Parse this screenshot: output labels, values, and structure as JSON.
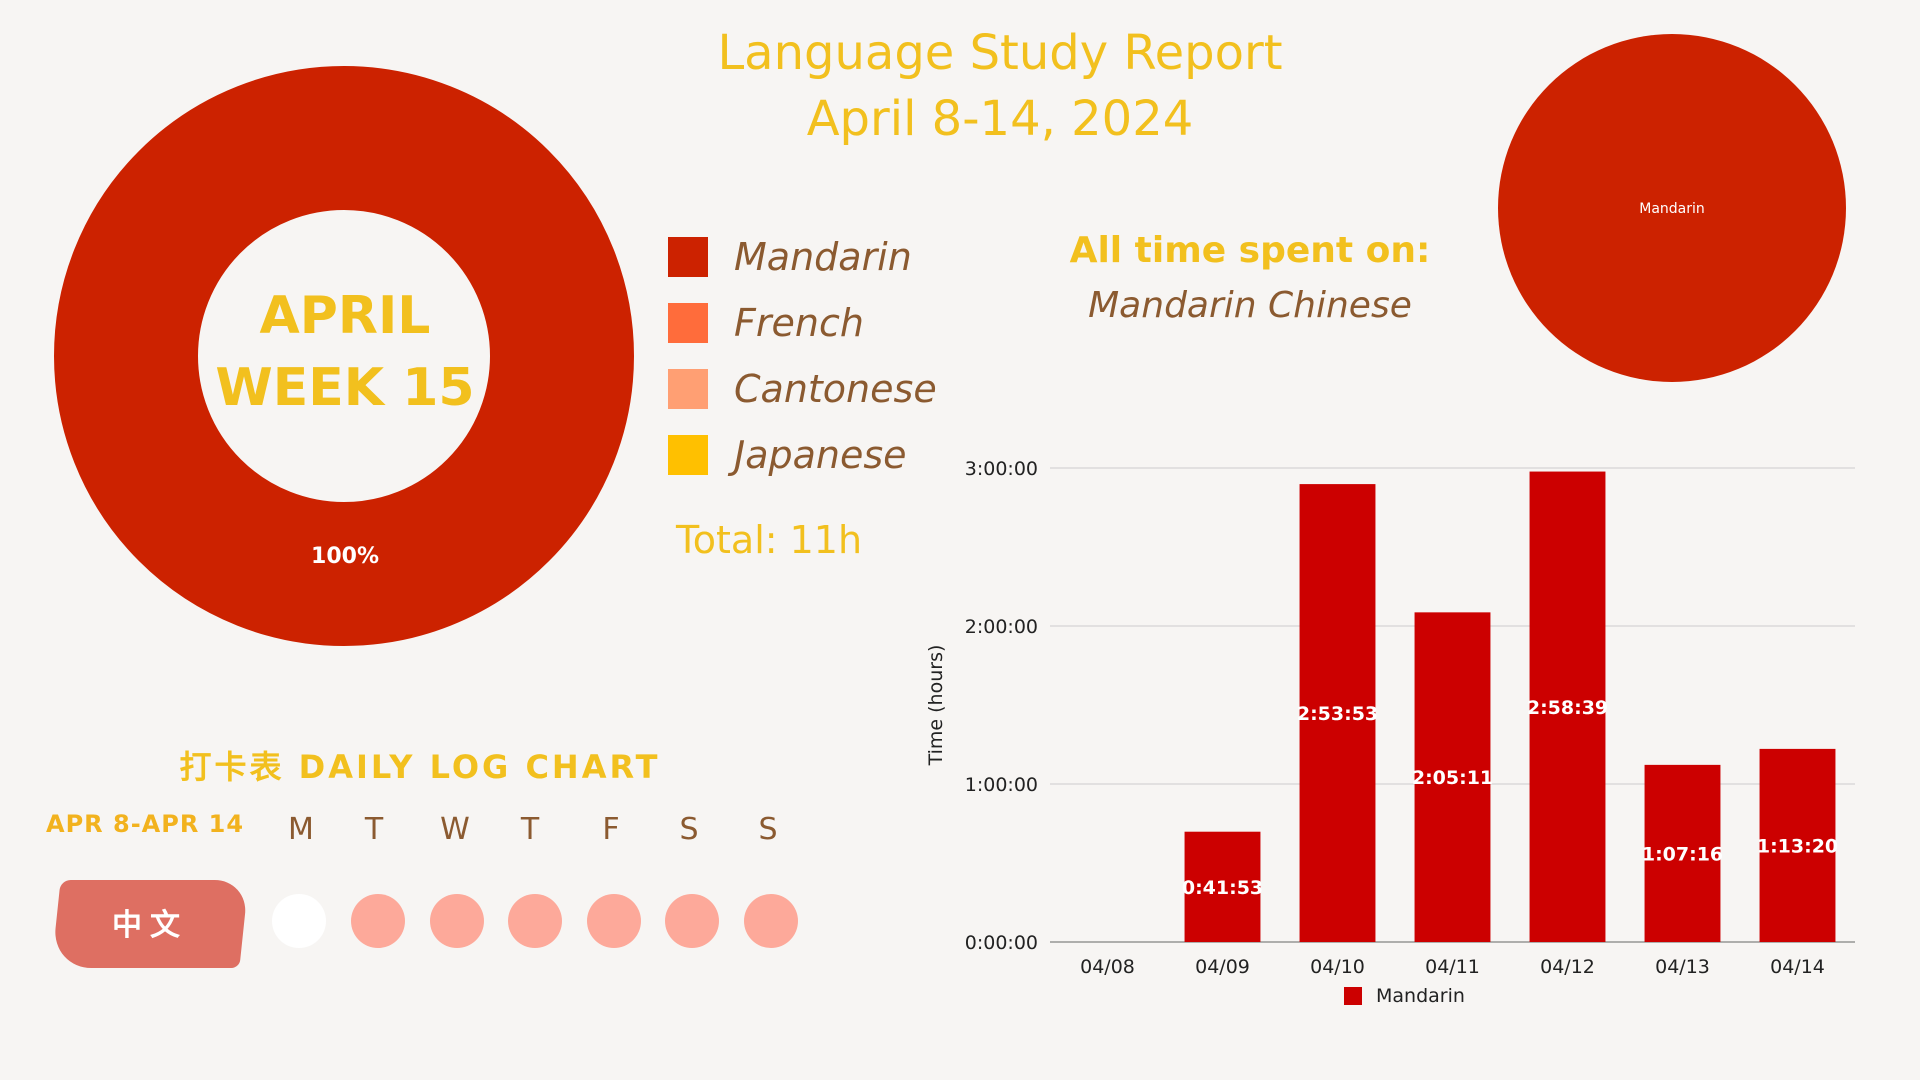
{
  "header": {
    "title_line1": "Language Study Report",
    "title_line2": "April 8-14, 2024"
  },
  "donut": {
    "center_line1": "APRIL",
    "center_line2": "WEEK 15",
    "percent_label": "100%"
  },
  "legend": {
    "items": [
      {
        "label": "Mandarin",
        "color": "#cc2200"
      },
      {
        "label": "French",
        "color": "#ff6c3b"
      },
      {
        "label": "Cantonese",
        "color": "#ff9f73"
      },
      {
        "label": "Japanese",
        "color": "#ffc000"
      }
    ],
    "total": "Total: 11h"
  },
  "alltime": {
    "title": "All time spent on:",
    "language": "Mandarin Chinese",
    "pie_label": "Mandarin"
  },
  "log": {
    "title": "打卡表 DAILY LOG CHART",
    "range": "APR 8-APR 14",
    "days": [
      "M",
      "T",
      "W",
      "T",
      "F",
      "S",
      "S"
    ],
    "row_label": "中文",
    "done_color": "#fda99a",
    "empty_color": "#ffffff",
    "completed": [
      false,
      true,
      true,
      true,
      true,
      true,
      true
    ]
  },
  "chart_data": [
    {
      "type": "pie",
      "title": "",
      "categories": [
        "Mandarin"
      ],
      "values": [
        100
      ],
      "labels": [
        "100%"
      ],
      "colors": [
        "#cc2200"
      ],
      "donut": true
    },
    {
      "type": "pie",
      "title": "All time spent on: Mandarin Chinese",
      "categories": [
        "Mandarin"
      ],
      "values": [
        100
      ],
      "labels": [
        "Mandarin"
      ],
      "colors": [
        "#cc2200"
      ]
    },
    {
      "type": "bar",
      "categories": [
        "04/08",
        "04/09",
        "04/10",
        "04/11",
        "04/12",
        "04/13",
        "04/14"
      ],
      "series": [
        {
          "name": "Mandarin",
          "values": [
            0,
            0.6981,
            2.8981,
            2.0864,
            2.9775,
            1.1211,
            1.2222
          ],
          "labels": [
            "",
            "0:41:53",
            "2:53:53",
            "2:05:11",
            "2:58:39",
            "1:07:16",
            "1:13:20"
          ],
          "color": "#cc0000"
        }
      ],
      "xlabel": "",
      "ylabel": "Time (hours)",
      "ylim": [
        0,
        3
      ],
      "yticks": [
        0,
        1,
        2,
        3
      ],
      "ytick_labels": [
        "0:00:00",
        "1:00:00",
        "2:00:00",
        "3:00:00"
      ],
      "grid": true,
      "legend": "bottom"
    }
  ]
}
